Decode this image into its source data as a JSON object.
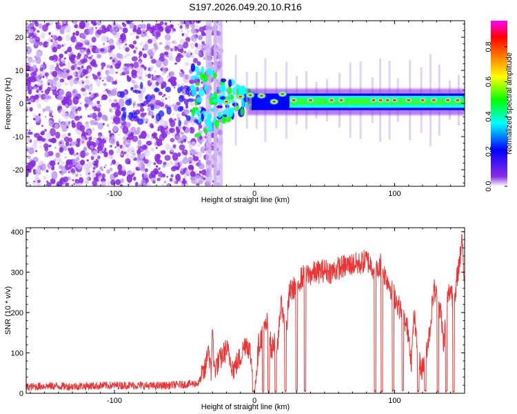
{
  "title": "S197.2026.049.20.10.R16",
  "chart_data": [
    {
      "type": "heatmap",
      "xlabel": "Height of straight line (km)",
      "ylabel": "Frequency (Hz)",
      "xlim": [
        -163,
        150
      ],
      "ylim": [
        -25,
        25
      ],
      "xticks": [
        -100,
        0,
        100
      ],
      "xtick_labels": [
        "-100",
        "0",
        "100"
      ],
      "yticks": [
        -20,
        -10,
        0,
        10,
        20
      ],
      "ytick_labels": [
        "-20",
        "-10",
        "0",
        "10",
        "20"
      ],
      "colorbar": {
        "label": "Normalized spectral amplitude",
        "range": [
          0.0,
          0.95
        ],
        "ticks": [
          0.0,
          0.2,
          0.4,
          0.6,
          0.8
        ],
        "tick_labels": [
          "0.0",
          "0.2",
          "0.4",
          "0.6",
          "0.8"
        ],
        "colors": [
          "#ffffff",
          "#8a2be2",
          "#0000ff",
          "#00ffff",
          "#00ff00",
          "#ffff00",
          "#ff8000",
          "#ff0000",
          "#ff00ff"
        ]
      },
      "description_regions": [
        {
          "x_range": [
            -163,
            -30
          ],
          "freq_range": [
            -25,
            25
          ],
          "amplitude": 0.1
        },
        {
          "x_range": [
            -30,
            150
          ],
          "freq_range": [
            -2,
            3
          ],
          "amplitude": 0.5
        }
      ]
    },
    {
      "type": "line",
      "xlabel": "Height of straight line (km)",
      "ylabel": "SNR (10 * v/v)",
      "xlim": [
        -163,
        150
      ],
      "ylim": [
        0,
        410
      ],
      "xticks": [
        -100,
        0,
        100
      ],
      "xtick_labels": [
        "-100",
        "0",
        "100"
      ],
      "yticks": [
        0,
        100,
        200,
        300,
        400
      ],
      "ytick_labels": [
        "0",
        "100",
        "200",
        "300",
        "400"
      ],
      "color": "#ee3333",
      "series": [
        {
          "name": "SNR",
          "x": [
            -163,
            -150,
            -130,
            -110,
            -90,
            -70,
            -50,
            -40,
            -35,
            -33,
            -31,
            -30,
            -29,
            -25,
            -20,
            -15,
            -10,
            -6,
            -3,
            0,
            3,
            6,
            10,
            12,
            14,
            16,
            18,
            20,
            22,
            25,
            28,
            30,
            32,
            35,
            40,
            45,
            50,
            55,
            60,
            65,
            70,
            75,
            80,
            85,
            88,
            90,
            92,
            95,
            100,
            105,
            110,
            112,
            114,
            115,
            117,
            120,
            125,
            128,
            130,
            133,
            135,
            138,
            140,
            143,
            145,
            147,
            148,
            150
          ],
          "y": [
            15,
            18,
            17,
            19,
            20,
            18,
            22,
            25,
            60,
            120,
            40,
            180,
            60,
            80,
            110,
            60,
            90,
            130,
            100,
            5,
            120,
            150,
            180,
            100,
            130,
            80,
            200,
            220,
            130,
            250,
            260,
            270,
            280,
            290,
            295,
            300,
            305,
            300,
            310,
            315,
            320,
            320,
            330,
            310,
            300,
            320,
            300,
            280,
            240,
            200,
            150,
            80,
            200,
            150,
            80,
            60,
            150,
            260,
            240,
            200,
            120,
            240,
            260,
            220,
            300,
            340,
            400,
            260
          ]
        }
      ]
    }
  ]
}
